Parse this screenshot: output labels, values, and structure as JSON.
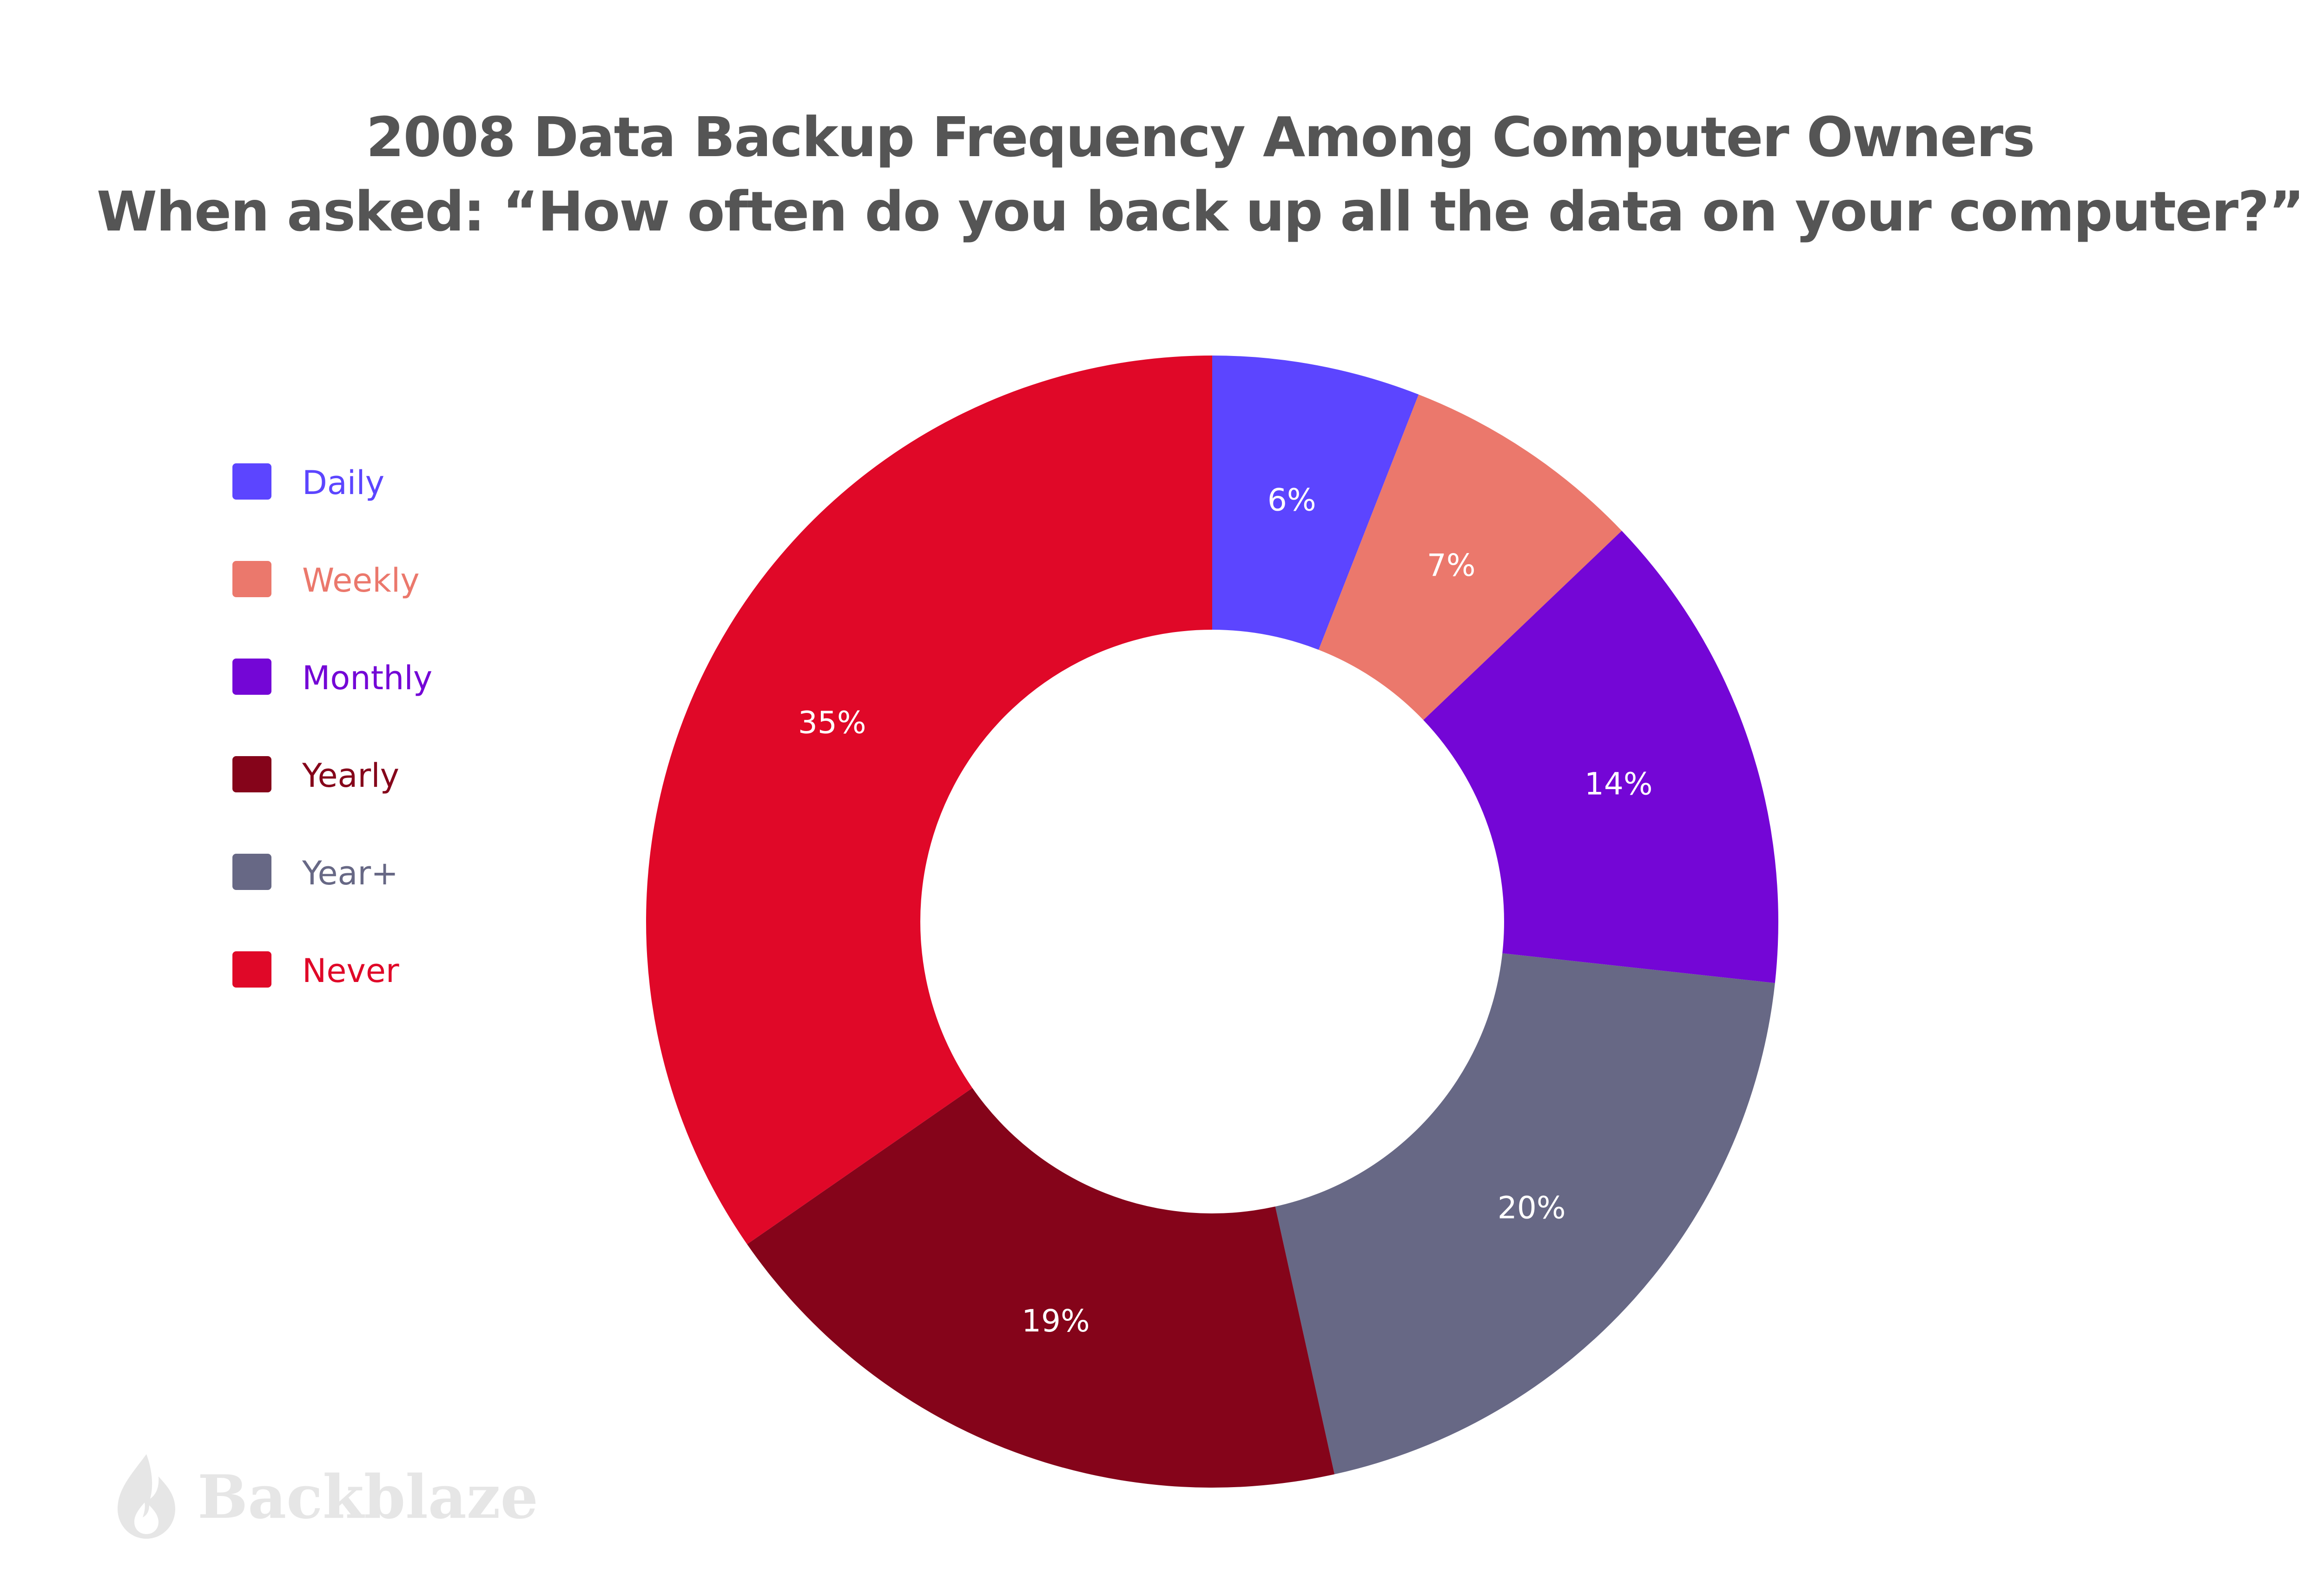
{
  "chart_data": {
    "type": "pie",
    "style": "donut",
    "title": "2008 Data Backup Frequency Among Computer Owners",
    "subtitle": "When asked: “How often do you back up all the data on your computer?”",
    "legend_position": "left",
    "categories": [
      "Daily",
      "Weekly",
      "Monthly",
      "Yearly",
      "Year+",
      "Never"
    ],
    "slice_order": [
      "Daily",
      "Weekly",
      "Monthly",
      "Year+",
      "Yearly",
      "Never"
    ],
    "values": [
      6,
      7,
      14,
      19,
      20,
      35
    ],
    "unit": "%",
    "colors": {
      "Daily": "#5c45ff",
      "Weekly": "#eb786c",
      "Monthly": "#7406d6",
      "Yearly": "#85041a",
      "Year+": "#676885",
      "Never": "#e00828"
    }
  },
  "watermark": {
    "text": "Backblaze",
    "icon": "flame-icon",
    "color": "#e6e6e6"
  }
}
